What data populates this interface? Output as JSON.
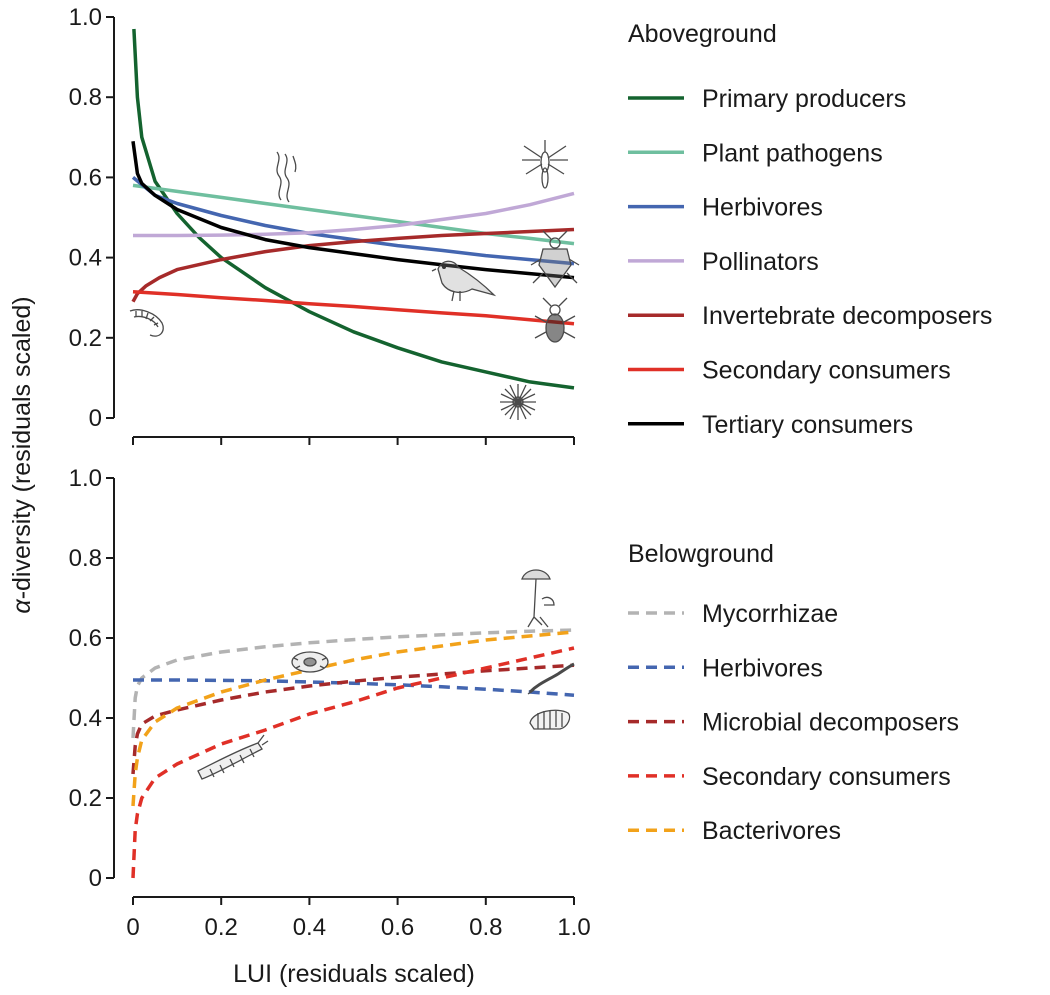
{
  "chart_data": [
    {
      "type": "line",
      "panel": "top",
      "legend_title": "Aboveground",
      "x_range": [
        0,
        1
      ],
      "ylim": [
        0,
        1
      ],
      "yticks": [
        0,
        0.2,
        0.4,
        0.6,
        0.8,
        1.0
      ],
      "ytick_labels": [
        "0",
        "0.2",
        "0.4",
        "0.6",
        "0.8",
        "1.0"
      ],
      "line_style": "solid",
      "series": [
        {
          "name": "Primary producers",
          "color": "#14632f",
          "x": [
            0.002,
            0.01,
            0.02,
            0.05,
            0.1,
            0.15,
            0.2,
            0.3,
            0.4,
            0.5,
            0.6,
            0.7,
            0.8,
            0.9,
            1.0
          ],
          "values": [
            0.97,
            0.8,
            0.7,
            0.59,
            0.51,
            0.45,
            0.4,
            0.325,
            0.265,
            0.215,
            0.175,
            0.14,
            0.115,
            0.09,
            0.075
          ]
        },
        {
          "name": "Plant pathogens",
          "color": "#6fbf9f",
          "x": [
            0.0,
            0.1,
            0.2,
            0.3,
            0.4,
            0.5,
            0.6,
            0.7,
            0.8,
            0.9,
            1.0
          ],
          "values": [
            0.58,
            0.565,
            0.55,
            0.535,
            0.52,
            0.505,
            0.49,
            0.475,
            0.46,
            0.448,
            0.435
          ]
        },
        {
          "name": "Herbivores",
          "color": "#4466b0",
          "x": [
            0.0,
            0.05,
            0.1,
            0.2,
            0.3,
            0.4,
            0.5,
            0.6,
            0.7,
            0.8,
            0.9,
            1.0
          ],
          "values": [
            0.6,
            0.555,
            0.535,
            0.505,
            0.48,
            0.46,
            0.445,
            0.43,
            0.418,
            0.405,
            0.395,
            0.385
          ]
        },
        {
          "name": "Pollinators",
          "color": "#c0a8d6",
          "x": [
            0.0,
            0.1,
            0.2,
            0.3,
            0.4,
            0.5,
            0.6,
            0.7,
            0.8,
            0.9,
            1.0
          ],
          "values": [
            0.455,
            0.455,
            0.456,
            0.458,
            0.462,
            0.47,
            0.48,
            0.495,
            0.51,
            0.532,
            0.56
          ]
        },
        {
          "name": "Invertebrate decomposers",
          "color": "#a62a2a",
          "x": [
            0.0,
            0.01,
            0.03,
            0.06,
            0.1,
            0.2,
            0.3,
            0.4,
            0.5,
            0.6,
            0.7,
            0.8,
            0.9,
            1.0
          ],
          "values": [
            0.29,
            0.31,
            0.33,
            0.35,
            0.37,
            0.395,
            0.415,
            0.43,
            0.44,
            0.448,
            0.455,
            0.46,
            0.465,
            0.47
          ]
        },
        {
          "name": "Secondary consumers",
          "color": "#e03027",
          "x": [
            0.0,
            0.1,
            0.2,
            0.3,
            0.4,
            0.5,
            0.6,
            0.7,
            0.8,
            0.9,
            1.0
          ],
          "values": [
            0.315,
            0.308,
            0.3,
            0.293,
            0.285,
            0.278,
            0.27,
            0.262,
            0.255,
            0.245,
            0.235
          ]
        },
        {
          "name": "Tertiary consumers",
          "color": "#000000",
          "x": [
            0.0,
            0.01,
            0.02,
            0.05,
            0.1,
            0.2,
            0.3,
            0.4,
            0.5,
            0.6,
            0.7,
            0.8,
            0.9,
            1.0
          ],
          "values": [
            0.69,
            0.61,
            0.585,
            0.555,
            0.52,
            0.475,
            0.445,
            0.425,
            0.41,
            0.395,
            0.382,
            0.37,
            0.36,
            0.35
          ]
        }
      ]
    },
    {
      "type": "line",
      "panel": "bottom",
      "legend_title": "Belowground",
      "x_range": [
        0,
        1
      ],
      "ylim": [
        0,
        1
      ],
      "yticks": [
        0,
        0.2,
        0.4,
        0.6,
        0.8,
        1.0
      ],
      "ytick_labels": [
        "0",
        "0.2",
        "0.4",
        "0.6",
        "0.8",
        "1.0"
      ],
      "xticks": [
        0,
        0.2,
        0.4,
        0.6,
        0.8,
        1.0
      ],
      "xtick_labels": [
        "0",
        "0.2",
        "0.4",
        "0.6",
        "0.8",
        "1.0"
      ],
      "xlabel": "LUI (residuals scaled)",
      "line_style": "dashed",
      "series": [
        {
          "name": "Mycorrhizae",
          "color": "#b3b3b3",
          "x": [
            0.0,
            0.005,
            0.01,
            0.02,
            0.05,
            0.1,
            0.2,
            0.3,
            0.4,
            0.5,
            0.6,
            0.7,
            0.8,
            0.9,
            1.0
          ],
          "values": [
            0.35,
            0.45,
            0.48,
            0.5,
            0.525,
            0.545,
            0.565,
            0.578,
            0.588,
            0.596,
            0.603,
            0.608,
            0.613,
            0.617,
            0.62
          ]
        },
        {
          "name": "Herbivores",
          "color": "#4466b0",
          "x": [
            0.0,
            0.1,
            0.2,
            0.3,
            0.4,
            0.5,
            0.6,
            0.7,
            0.8,
            0.9,
            1.0
          ],
          "values": [
            0.495,
            0.495,
            0.494,
            0.493,
            0.49,
            0.487,
            0.483,
            0.478,
            0.472,
            0.465,
            0.457
          ]
        },
        {
          "name": "Microbial decomposers",
          "color": "#a62a2a",
          "x": [
            0.0,
            0.005,
            0.01,
            0.02,
            0.05,
            0.1,
            0.2,
            0.3,
            0.4,
            0.5,
            0.6,
            0.7,
            0.8,
            0.9,
            1.0
          ],
          "values": [
            0.26,
            0.33,
            0.36,
            0.385,
            0.405,
            0.42,
            0.445,
            0.465,
            0.48,
            0.492,
            0.502,
            0.51,
            0.518,
            0.525,
            0.532
          ]
        },
        {
          "name": "Secondary consumers",
          "color": "#e03027",
          "x": [
            0.0,
            0.005,
            0.01,
            0.02,
            0.05,
            0.1,
            0.2,
            0.3,
            0.4,
            0.5,
            0.6,
            0.7,
            0.8,
            0.9,
            1.0
          ],
          "values": [
            0.0,
            0.12,
            0.16,
            0.2,
            0.25,
            0.285,
            0.335,
            0.37,
            0.41,
            0.44,
            0.475,
            0.5,
            0.525,
            0.55,
            0.575
          ]
        },
        {
          "name": "Bacterivores",
          "color": "#f2a21a",
          "x": [
            0.0,
            0.005,
            0.01,
            0.02,
            0.05,
            0.1,
            0.2,
            0.3,
            0.4,
            0.5,
            0.6,
            0.7,
            0.8,
            0.9,
            1.0
          ],
          "values": [
            0.18,
            0.26,
            0.3,
            0.345,
            0.39,
            0.425,
            0.465,
            0.495,
            0.52,
            0.545,
            0.565,
            0.58,
            0.595,
            0.605,
            0.615
          ]
        }
      ]
    }
  ],
  "ylabel": {
    "symbol": "α",
    "text": "-diversity (residuals scaled)"
  },
  "icons": [
    {
      "name": "bacterium-icon"
    },
    {
      "name": "mosquito-icon"
    },
    {
      "name": "stink-bug-icon"
    },
    {
      "name": "bird-icon"
    },
    {
      "name": "ground-beetle-icon"
    },
    {
      "name": "millipede-icon"
    },
    {
      "name": "flower-icon"
    },
    {
      "name": "mushroom-icon"
    },
    {
      "name": "protozoan-icon"
    },
    {
      "name": "nematode-icon"
    },
    {
      "name": "grub-icon"
    },
    {
      "name": "collembola-icon"
    }
  ]
}
